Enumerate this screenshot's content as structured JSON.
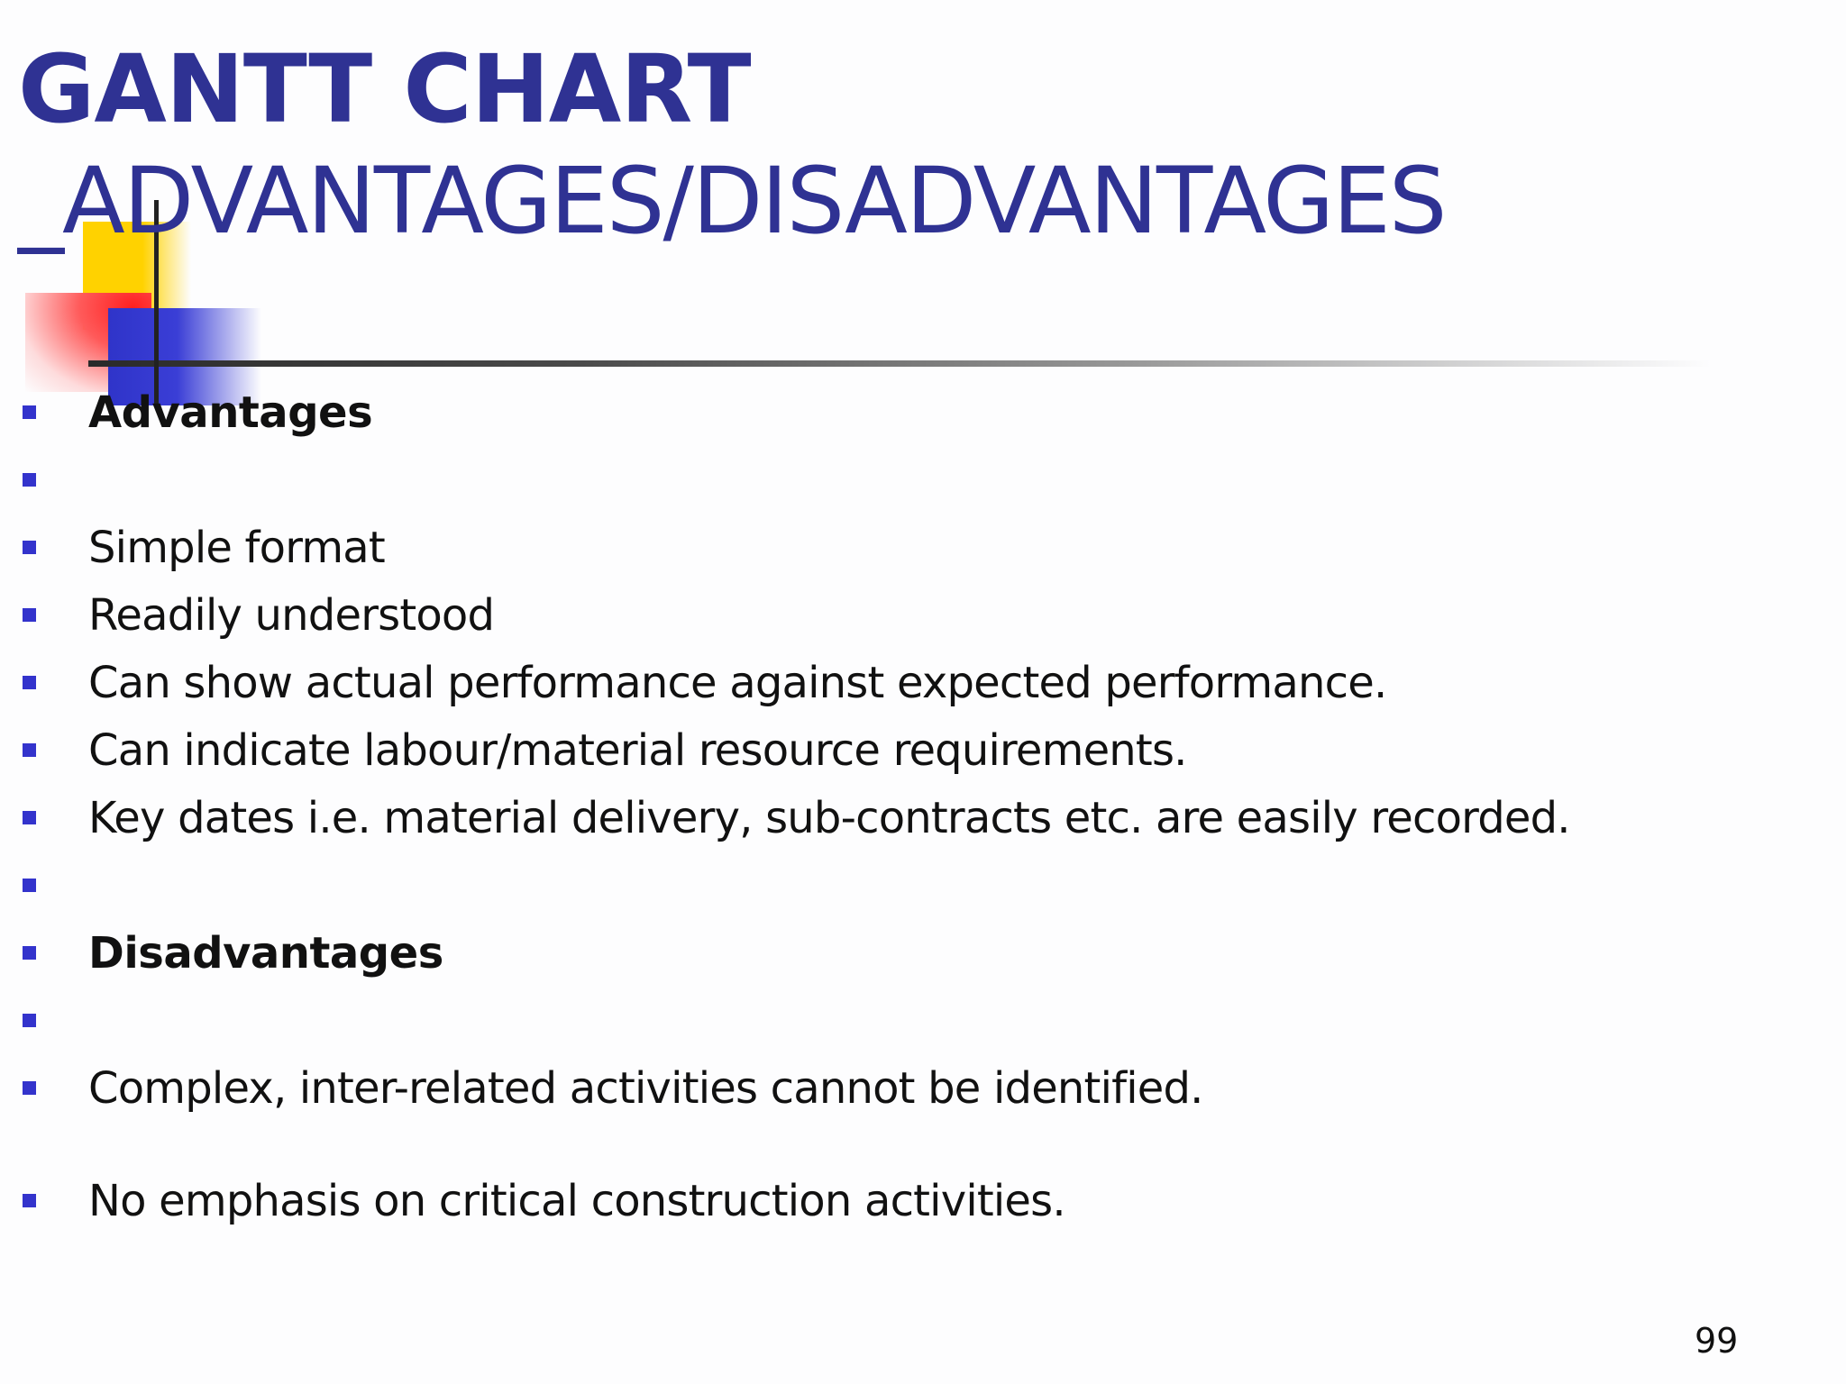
{
  "slide": {
    "title_line1": "GANTT CHART",
    "title_line2": "_ADVANTAGES/DISADVANTAGES",
    "accent_color": "#2f3293",
    "bullet_color": "#3333cc",
    "page_number": "99"
  },
  "bullets": [
    {
      "text": "Advantages",
      "style": "bold"
    },
    {
      "text": "",
      "style": "normal"
    },
    {
      "text": "Simple format",
      "style": "normal"
    },
    {
      "text": "Readily understood",
      "style": "normal"
    },
    {
      "text": "Can show actual performance against expected performance.",
      "style": "normal"
    },
    {
      "text": "Can indicate labour/material resource requirements.",
      "style": "normal"
    },
    {
      "text": "Key dates i.e. material delivery, sub-contracts etc. are easily recorded.",
      "style": "normal"
    },
    {
      "text": "",
      "style": "normal"
    },
    {
      "text": "Disadvantages",
      "style": "bold"
    },
    {
      "text": "",
      "style": "normal"
    },
    {
      "text": "Complex, inter-related activities cannot be identified.",
      "style": "normal"
    },
    {
      "text": "No emphasis on critical construction activities.",
      "style": "normal"
    }
  ]
}
